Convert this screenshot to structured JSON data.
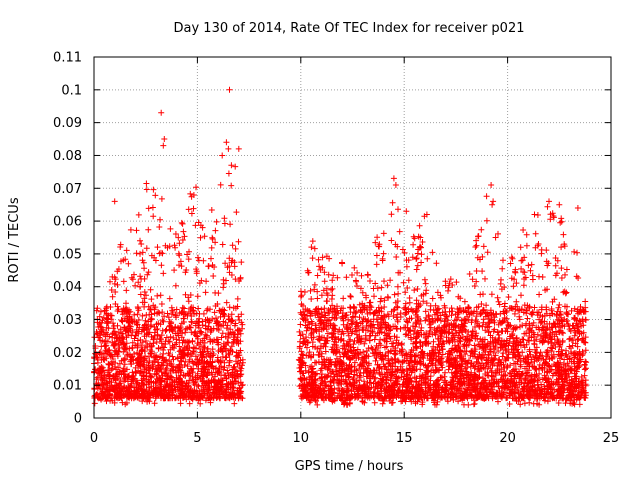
{
  "chart_data": {
    "type": "scatter",
    "title": "Day 130 of 2014, Rate Of TEC Index for receiver p021",
    "xlabel": "GPS time / hours",
    "ylabel": "ROTI / TECUs",
    "xlim": [
      0,
      25
    ],
    "ylim": [
      0,
      0.11
    ],
    "grid": true,
    "marker": "+",
    "color": "#ff0000",
    "x_ticks": [
      "0",
      "5",
      "10",
      "15",
      "20",
      "25"
    ],
    "x_tick_values": [
      0,
      5,
      10,
      15,
      20,
      25
    ],
    "y_ticks": [
      "0",
      "0.01",
      "0.02",
      "0.03",
      "0.04",
      "0.05",
      "0.06",
      "0.07",
      "0.08",
      "0.09",
      "0.1",
      "0.11"
    ],
    "y_tick_values": [
      0,
      0.01,
      0.02,
      0.03,
      0.04,
      0.05,
      0.06,
      0.07,
      0.08,
      0.09,
      0.1,
      0.11
    ],
    "series": [
      {
        "name": "p021",
        "segments": [
          {
            "x_start": 0.0,
            "x_end": 7.2,
            "min": 0.004,
            "envelope": [
              [
                0.0,
                0.038
              ],
              [
                0.5,
                0.035
              ],
              [
                1.0,
                0.05
              ],
              [
                1.5,
                0.055
              ],
              [
                2.0,
                0.06
              ],
              [
                2.5,
                0.075
              ],
              [
                3.0,
                0.07
              ],
              [
                3.5,
                0.065
              ],
              [
                4.0,
                0.06
              ],
              [
                4.5,
                0.07
              ],
              [
                5.0,
                0.075
              ],
              [
                5.5,
                0.06
              ],
              [
                6.0,
                0.07
              ],
              [
                6.5,
                0.08
              ],
              [
                7.0,
                0.08
              ],
              [
                7.2,
                0.04
              ]
            ]
          },
          {
            "x_start": 9.9,
            "x_end": 23.8,
            "min": 0.004,
            "envelope": [
              [
                9.9,
                0.035
              ],
              [
                10.5,
                0.055
              ],
              [
                11.0,
                0.05
              ],
              [
                12.0,
                0.048
              ],
              [
                13.0,
                0.045
              ],
              [
                14.0,
                0.06
              ],
              [
                14.5,
                0.07
              ],
              [
                15.0,
                0.055
              ],
              [
                16.0,
                0.062
              ],
              [
                17.0,
                0.045
              ],
              [
                18.0,
                0.05
              ],
              [
                19.0,
                0.07
              ],
              [
                20.0,
                0.05
              ],
              [
                21.0,
                0.06
              ],
              [
                22.0,
                0.065
              ],
              [
                23.0,
                0.06
              ],
              [
                23.8,
                0.04
              ]
            ]
          }
        ],
        "outliers": [
          {
            "x": 6.55,
            "y": 0.1
          },
          {
            "x": 3.25,
            "y": 0.093
          },
          {
            "x": 3.4,
            "y": 0.085
          },
          {
            "x": 3.35,
            "y": 0.083
          },
          {
            "x": 6.4,
            "y": 0.084
          },
          {
            "x": 6.5,
            "y": 0.082
          },
          {
            "x": 7.0,
            "y": 0.082
          },
          {
            "x": 6.2,
            "y": 0.08
          },
          {
            "x": 14.5,
            "y": 0.073
          },
          {
            "x": 14.6,
            "y": 0.071
          },
          {
            "x": 19.2,
            "y": 0.071
          },
          {
            "x": 19.3,
            "y": 0.066
          },
          {
            "x": 19.25,
            "y": 0.065
          },
          {
            "x": 22.0,
            "y": 0.066
          },
          {
            "x": 22.5,
            "y": 0.065
          },
          {
            "x": 23.4,
            "y": 0.064
          },
          {
            "x": 15.1,
            "y": 0.063
          },
          {
            "x": 16.1,
            "y": 0.062
          },
          {
            "x": 1.0,
            "y": 0.066
          },
          {
            "x": 21.3,
            "y": 0.062
          }
        ]
      }
    ]
  }
}
